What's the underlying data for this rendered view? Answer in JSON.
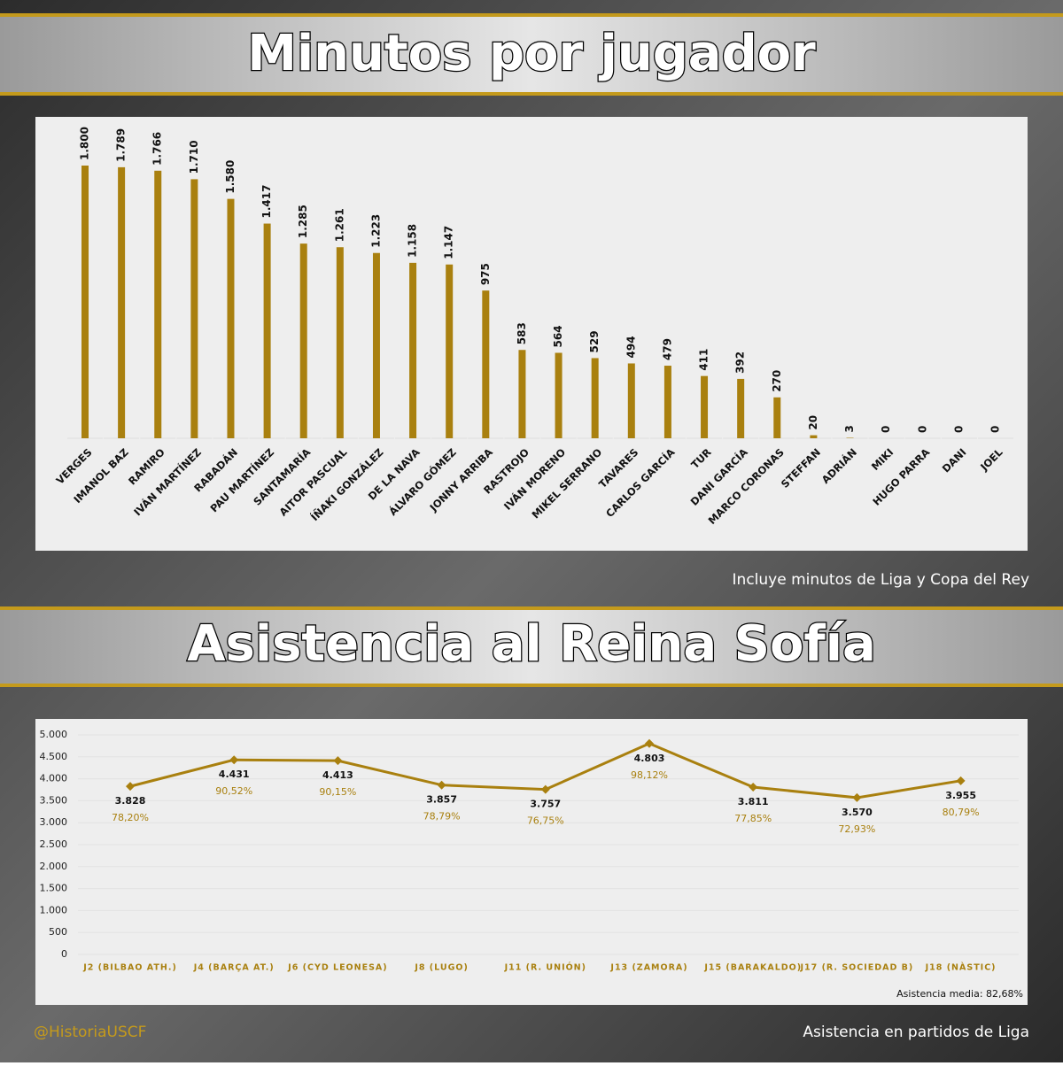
{
  "chart_data": [
    {
      "type": "bar",
      "title": "Minutos por jugador",
      "note": "Incluye minutos de Liga y Copa del Rey",
      "color": "#a9800f",
      "categories": [
        "VERGES",
        "IMANOL BAZ",
        "RAMIRO",
        "IVÁN MARTÍNEZ",
        "RABADÁN",
        "PAU MARTÍNEZ",
        "SANTAMARÍA",
        "AITOR PASCUAL",
        "ÍÑAKI GONZÁLEZ",
        "DE LA NAVA",
        "ÁLVARO GÓMEZ",
        "JONNY ARRIBA",
        "RASTROJO",
        "IVÁN MORENO",
        "MIKEL SERRANO",
        "TAVARES",
        "CARLOS GARCÍA",
        "TUR",
        "DANI GARCÍA",
        "MARCO CORONAS",
        "STEFFAN",
        "ADRIÁN",
        "MIKI",
        "HUGO PARRA",
        "DANI",
        "JOEL"
      ],
      "values": [
        1800,
        1789,
        1766,
        1710,
        1580,
        1417,
        1285,
        1261,
        1223,
        1158,
        1147,
        975,
        583,
        564,
        529,
        494,
        479,
        411,
        392,
        270,
        20,
        3,
        0,
        0,
        0,
        0
      ],
      "value_labels": [
        "1.800",
        "1.789",
        "1.766",
        "1.710",
        "1.580",
        "1.417",
        "1.285",
        "1.261",
        "1.223",
        "1.158",
        "1.147",
        "975",
        "583",
        "564",
        "529",
        "494",
        "479",
        "411",
        "392",
        "270",
        "20",
        "3",
        "0",
        "0",
        "0",
        "0"
      ]
    },
    {
      "type": "line",
      "title": "Asistencia al Reina Sofía",
      "note": "Asistencia en partidos de Liga",
      "color": "#a9800f",
      "categories": [
        "J2 (BILBAO ATH.)",
        "J4 (BARÇA AT.)",
        "J6 (CYD LEONESA)",
        "J8 (LUGO)",
        "J11 (R. UNIÓN)",
        "J13 (ZAMORA)",
        "J15 (BARAKALDO)",
        "J17 (R. SOCIEDAD B)",
        "J18 (NÀSTIC)"
      ],
      "values": [
        3828,
        4431,
        4413,
        3857,
        3757,
        4803,
        3811,
        3570,
        3955
      ],
      "value_labels": [
        "3.828",
        "4.431",
        "4.413",
        "3.857",
        "3.757",
        "4.803",
        "3.811",
        "3.570",
        "3.955"
      ],
      "percentages": [
        78.2,
        90.52,
        90.15,
        78.79,
        76.75,
        98.12,
        77.85,
        72.93,
        80.79
      ],
      "percentage_labels": [
        "78,20%",
        "90,52%",
        "90,15%",
        "78,79%",
        "76,75%",
        "98,12%",
        "77,85%",
        "72,93%",
        "80,79%"
      ],
      "average_label": "Asistencia media:  82,68%",
      "ylim": [
        0,
        5000
      ],
      "yticks": [
        0,
        500,
        {
          "value": 1000,
          "label": "1.000"
        },
        {
          "value": 1500,
          "label": "1.500"
        },
        {
          "value": 2000,
          "label": "2.000"
        },
        {
          "value": 2500,
          "label": "2.500"
        },
        {
          "value": 3000,
          "label": "3.000"
        },
        {
          "value": 3500,
          "label": "3.500"
        },
        {
          "value": 4000,
          "label": "4.000"
        },
        {
          "value": 4500,
          "label": "4.500"
        },
        {
          "value": 5000,
          "label": "5.000"
        }
      ],
      "grid": true
    }
  ],
  "footer": {
    "handle": "@HistoriaUSCF"
  }
}
